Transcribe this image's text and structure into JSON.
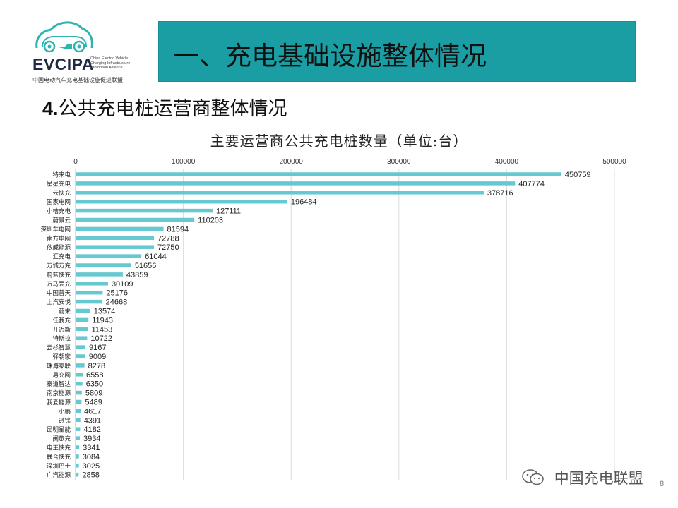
{
  "logo": {
    "name": "EVCIPA",
    "en": "China Electric Vehicle\nCharging Infrastructure\nPromotion Alliance",
    "cn": "中国电动汽车充电基础设施促进联盟"
  },
  "header": {
    "title": "一、充电基础设施整体情况"
  },
  "section": {
    "number": "4.",
    "title": "公共充电桩运营商整体情况"
  },
  "watermark": {
    "text": "中国充电联盟"
  },
  "page_number": "8",
  "colors": {
    "bar": "#66c8d0",
    "header_bg": "#1a9ea4",
    "grid": "#dcdcdc"
  },
  "chart_data": {
    "type": "bar",
    "orientation": "horizontal",
    "title": "主要运营商公共充电桩数量（单位:台）",
    "axis_position": "top",
    "xlim": [
      0,
      500000
    ],
    "xticks": [
      0,
      100000,
      200000,
      300000,
      400000,
      500000
    ],
    "grid": true,
    "legend": "none",
    "categories": [
      "特来电",
      "星星充电",
      "云快充",
      "国家电网",
      "小桔充电",
      "蔚景云",
      "深圳车电网",
      "南方电网",
      "依威能源",
      "汇充电",
      "万城万充",
      "蔚蓝快充",
      "万马爱充",
      "中国普天",
      "上汽安悦",
      "蔚来",
      "任我充",
      "开迈斯",
      "特斯拉",
      "云杉智慧",
      "驿朝家",
      "珠海泰联",
      "易充网",
      "泰道智达",
      "南京能源",
      "我爱能源",
      "小鹏",
      "逊铭",
      "昆明星能",
      "闽旅充",
      "电王快充",
      "联合快充",
      "深圳巴士",
      "广汽能源"
    ],
    "values": [
      450759,
      407774,
      378716,
      196484,
      127111,
      110203,
      81594,
      72788,
      72750,
      61044,
      51656,
      43859,
      30109,
      25176,
      24668,
      13574,
      11943,
      11453,
      10722,
      9167,
      9009,
      8278,
      6558,
      6350,
      5809,
      5489,
      4617,
      4391,
      4182,
      3934,
      3341,
      3084,
      3025,
      2858
    ]
  }
}
